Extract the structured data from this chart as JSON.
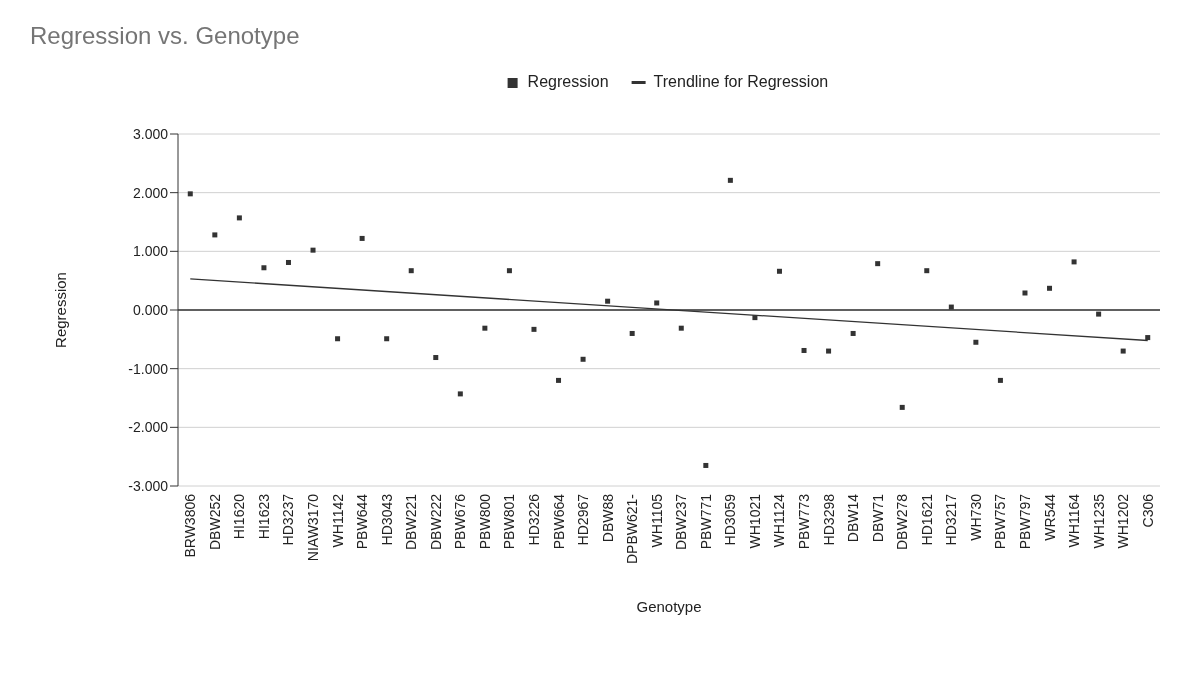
{
  "chart_data": {
    "type": "scatter",
    "title": "Regression vs. Genotype",
    "xlabel": "Genotype",
    "ylabel": "Regression",
    "categories": [
      "BRW3806",
      "DBW252",
      "HI1620",
      "HI1623",
      "HD3237",
      "NIAW3170",
      "WH1142",
      "PBW644",
      "HD3043",
      "DBW221",
      "DBW222",
      "PBW676",
      "PBW800",
      "PBW801",
      "HD3226",
      "PBW664",
      "HD2967",
      "DBW88",
      "DPBW621-",
      "WH1105",
      "DBW237",
      "PBW771",
      "HD3059",
      "WH1021",
      "WH1124",
      "PBW773",
      "HD3298",
      "DBW14",
      "DBW71",
      "DBW278",
      "HD1621",
      "HD3217",
      "WH730",
      "PBW757",
      "PBW797",
      "WR544",
      "WH1164",
      "WH1235",
      "WH1202",
      "C306"
    ],
    "series": [
      {
        "name": "Regression",
        "marker": "square",
        "color": "#333333",
        "values": [
          1.98,
          1.28,
          1.57,
          0.72,
          0.81,
          1.02,
          -0.49,
          1.22,
          -0.49,
          0.67,
          -0.81,
          -1.43,
          -0.31,
          0.67,
          -0.33,
          -1.2,
          -0.84,
          0.15,
          -0.4,
          0.12,
          -0.31,
          -2.65,
          2.21,
          -0.13,
          0.66,
          -0.69,
          -0.7,
          -0.4,
          0.79,
          -1.66,
          0.67,
          0.05,
          -0.55,
          -1.2,
          0.29,
          0.37,
          0.82,
          -0.07,
          -0.7,
          -0.47
        ]
      },
      {
        "name": "Trendline for Regression",
        "type": "line",
        "marker": "none",
        "color": "#333333",
        "x": [
          "BRW3806",
          "C306"
        ],
        "values": [
          0.53,
          -0.52
        ]
      }
    ],
    "ylim": [
      -3,
      3
    ],
    "yticks": [
      {
        "value": -3,
        "label": "-3.000"
      },
      {
        "value": -2,
        "label": "-2.000"
      },
      {
        "value": -1,
        "label": "-1.000"
      },
      {
        "value": 0,
        "label": "0.000"
      },
      {
        "value": 1,
        "label": "1.000"
      },
      {
        "value": 2,
        "label": "2.000"
      },
      {
        "value": 3,
        "label": "3.000"
      }
    ],
    "grid": "y",
    "legend": "top"
  }
}
